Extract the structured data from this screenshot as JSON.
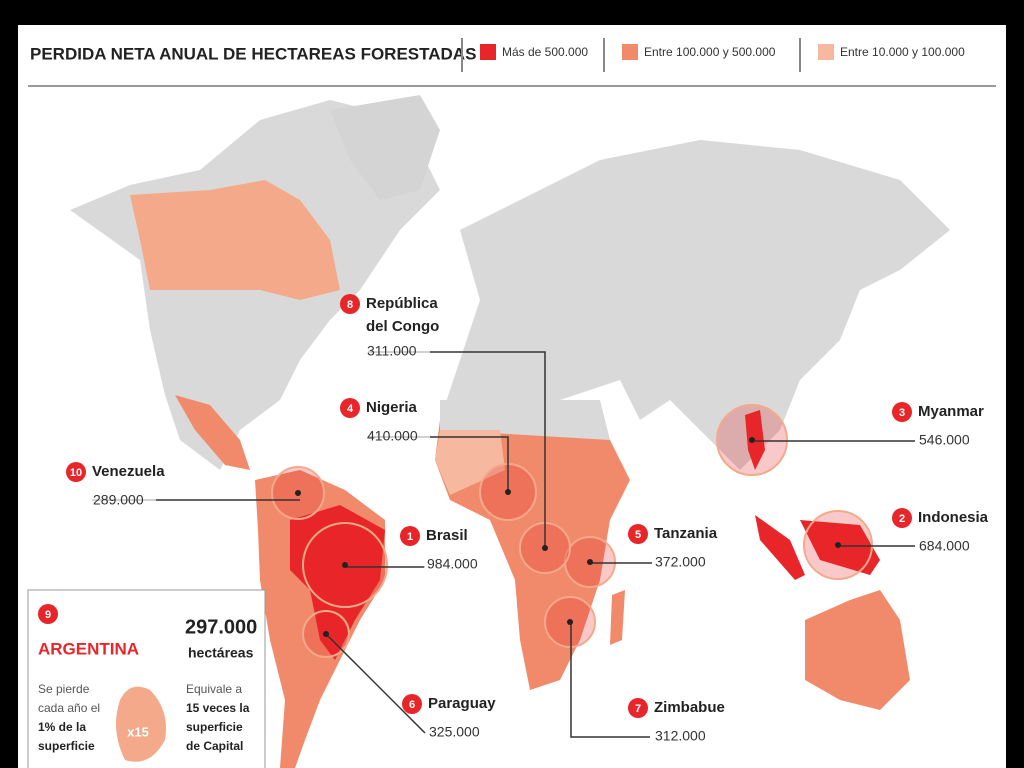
{
  "header": {
    "title": "PERDIDA NETA ANUAL DE HECTAREAS FORESTADAS",
    "legend": [
      {
        "label": "Más de 500.000",
        "color": "#e8262a"
      },
      {
        "label": "Entre 100.000 y 500.000",
        "color": "#f08a6a"
      },
      {
        "label": "Entre 10.000 y 100.000",
        "color": "#f6b9a0"
      }
    ]
  },
  "countries": [
    {
      "rank": 1,
      "name": "Brasil",
      "value": "984.000"
    },
    {
      "rank": 2,
      "name": "Indonesia",
      "value": "684.000"
    },
    {
      "rank": 3,
      "name": "Myanmar",
      "value": "546.000"
    },
    {
      "rank": 4,
      "name": "Nigeria",
      "value": "410.000"
    },
    {
      "rank": 5,
      "name": "Tanzania",
      "value": "372.000"
    },
    {
      "rank": 6,
      "name": "Paraguay",
      "value": "325.000"
    },
    {
      "rank": 7,
      "name": "Zimbabue",
      "value": "312.000"
    },
    {
      "rank": 8,
      "name": "República del Congo",
      "name_lines": [
        "República",
        "del Congo"
      ],
      "value": "311.000"
    },
    {
      "rank": 10,
      "name": "Venezuela",
      "value": "289.000"
    }
  ],
  "argentina": {
    "rank": 9,
    "name": "ARGENTINA",
    "value": "297.000",
    "unit": "hectáreas",
    "left_text": [
      "Se pierde",
      "cada año el",
      "1% de la",
      "superficie"
    ],
    "multiplier": "x15",
    "right_text": [
      "Equivale a",
      "15 veces la",
      "superficie",
      "de Capital"
    ]
  }
}
